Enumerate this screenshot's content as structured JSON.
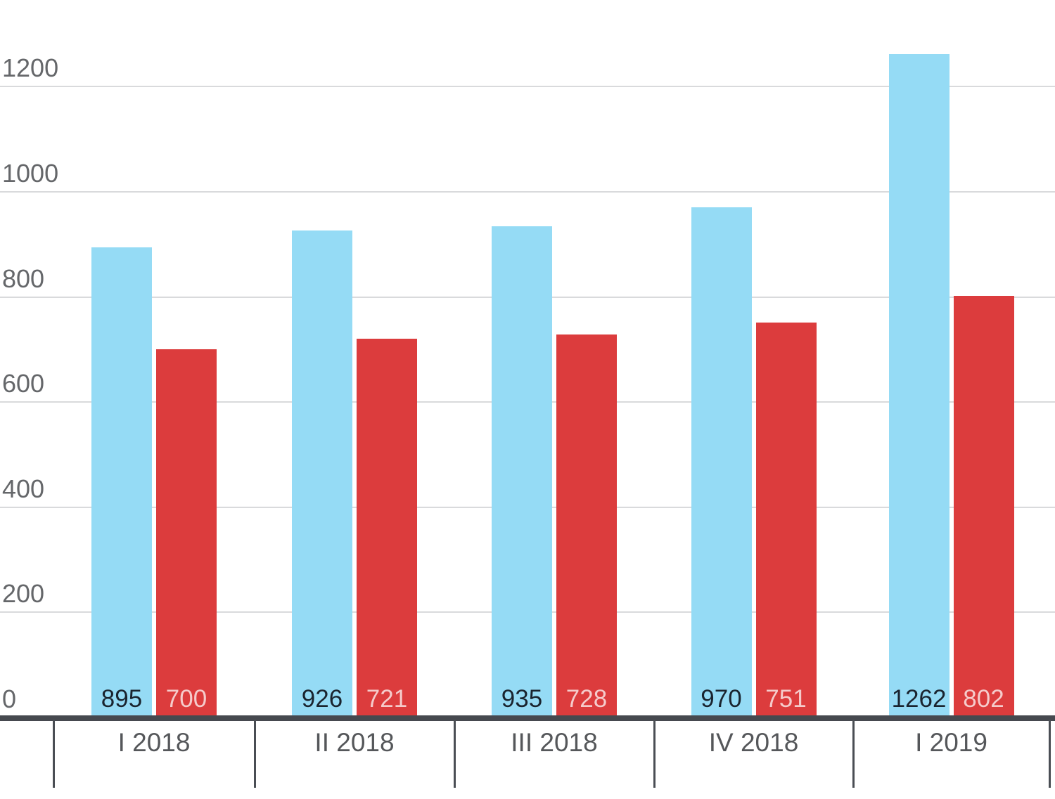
{
  "chart_data": {
    "type": "bar",
    "title": "",
    "xlabel": "",
    "ylabel": "",
    "categories": [
      "I 2018",
      "II 2018",
      "III 2018",
      "IV 2018",
      "I 2019"
    ],
    "series": [
      {
        "name": "blue-series",
        "color": "#95dbf5",
        "label_color": "#1a242f",
        "values": [
          895,
          926,
          935,
          970,
          1262
        ]
      },
      {
        "name": "red-series",
        "color": "#dc3c3d",
        "label_color": "#f5cbcb",
        "values": [
          700,
          721,
          728,
          751,
          802
        ]
      }
    ],
    "y_ticks": [
      0,
      200,
      400,
      600,
      800,
      1000,
      1200
    ],
    "ylim": [
      0,
      1365
    ],
    "grid": true,
    "legend_position": "none",
    "bar_value_labels_visible": true
  },
  "colors": {
    "background": "#ffffff",
    "gridline": "#d9dadc",
    "axis_line": "#46494f",
    "x_tick": "#4a4e54",
    "y_tick_label_color": "#65676a",
    "x_category_label_color": "#55575a"
  }
}
